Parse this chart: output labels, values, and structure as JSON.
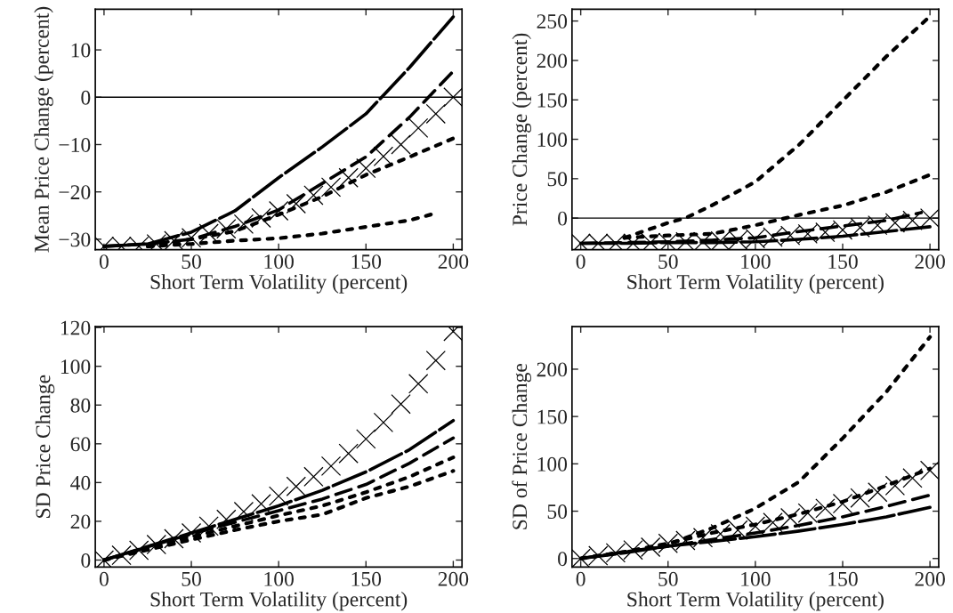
{
  "chart_data": [
    {
      "type": "line",
      "xlabel": "Short Term Volatility (percent)",
      "ylabel": "Mean Price Change (percent)",
      "xlim": [
        -5,
        205
      ],
      "ylim": [
        -32.2,
        18.6
      ],
      "xticks": [
        0,
        50,
        100,
        150,
        200
      ],
      "yticks": [
        -30,
        -20,
        -10,
        0,
        10
      ],
      "grid": false,
      "legend": false,
      "ref_lines": [
        {
          "axis": "y",
          "value": 0,
          "color": "#000000",
          "line_style": "solid"
        }
      ],
      "series": [
        {
          "line_style": "dashed",
          "color": "#000000",
          "x": [
            0,
            25,
            50,
            75,
            100,
            125,
            150,
            175,
            200
          ],
          "values": [
            -31.5,
            -31,
            -28.5,
            -24,
            -17,
            -10.5,
            -3.5,
            6.3,
            17
          ]
        },
        {
          "line_style": "dashed",
          "color": "#000000",
          "x": [
            0,
            25,
            50,
            75,
            100,
            125,
            150,
            175,
            200
          ],
          "values": [
            -31.5,
            -31,
            -30,
            -27.3,
            -23.8,
            -18.2,
            -12.6,
            -4.2,
            5.5
          ]
        },
        {
          "line_style": "dotted",
          "color": "#000000",
          "x": [
            25,
            50,
            75,
            100,
            125,
            150,
            175,
            200
          ],
          "values": [
            -31.5,
            -30,
            -28.3,
            -24.8,
            -21,
            -16.4,
            -12.6,
            -8.7
          ]
        },
        {
          "line_style": "dotted",
          "color": "#000000",
          "x": [
            25,
            50,
            75,
            100,
            125,
            150,
            175,
            190
          ],
          "values": [
            -31.5,
            -31,
            -30.3,
            -29.8,
            -28.8,
            -27.4,
            -26,
            -24.5
          ]
        },
        {
          "type": "scatter",
          "marker": "cross",
          "color": "#000000",
          "x": [
            0,
            10,
            20,
            30,
            40,
            50,
            60,
            70,
            80,
            90,
            100,
            110,
            120,
            130,
            140,
            150,
            160,
            170,
            180,
            190,
            200
          ],
          "values": [
            -31.5,
            -31.5,
            -31.5,
            -31,
            -30.3,
            -29.7,
            -28.8,
            -27.8,
            -26.8,
            -25.5,
            -24,
            -22.5,
            -20.7,
            -19,
            -17,
            -15,
            -12.5,
            -10,
            -6.5,
            -3.5,
            0
          ]
        }
      ]
    },
    {
      "type": "line",
      "xlabel": "Short Term Volatility (percent)",
      "ylabel": "Price Change (percent)",
      "xlim": [
        -5,
        205
      ],
      "ylim": [
        -40,
        265
      ],
      "xticks": [
        0,
        50,
        100,
        150,
        200
      ],
      "yticks": [
        0,
        50,
        100,
        150,
        200,
        250
      ],
      "grid": false,
      "legend": false,
      "ref_lines": [
        {
          "axis": "y",
          "value": 0,
          "color": "#000000",
          "line_style": "solid"
        }
      ],
      "series": [
        {
          "line_style": "dashed",
          "color": "#000000",
          "x": [
            0,
            25,
            50,
            75,
            100,
            125,
            150,
            175,
            200
          ],
          "values": [
            -32,
            -32,
            -31,
            -31,
            -30,
            -27,
            -23,
            -17,
            -11
          ]
        },
        {
          "line_style": "dashed",
          "color": "#000000",
          "x": [
            0,
            25,
            50,
            75,
            100,
            125,
            150,
            175,
            195
          ],
          "values": [
            -32,
            -31,
            -30,
            -28,
            -25,
            -17,
            -10,
            -3,
            7
          ]
        },
        {
          "line_style": "dotted",
          "color": "#000000",
          "x": [
            25,
            50,
            75,
            100,
            125,
            150,
            175,
            200
          ],
          "values": [
            -25,
            -22,
            -20,
            -9,
            4,
            16,
            33,
            55
          ]
        },
        {
          "line_style": "dotted",
          "color": "#000000",
          "x": [
            25,
            50,
            60,
            75,
            100,
            125,
            150,
            175,
            200
          ],
          "values": [
            -25,
            -6,
            0,
            16,
            46,
            93,
            149,
            205,
            256
          ]
        },
        {
          "type": "scatter",
          "marker": "cross",
          "color": "#000000",
          "x": [
            0,
            10,
            20,
            30,
            40,
            50,
            60,
            70,
            80,
            90,
            100,
            110,
            120,
            130,
            140,
            150,
            160,
            170,
            180,
            190,
            200
          ],
          "values": [
            -32,
            -32,
            -32,
            -32,
            -31,
            -31,
            -30,
            -30,
            -29,
            -28,
            -26,
            -24,
            -22,
            -20,
            -18,
            -15,
            -12,
            -9,
            -6,
            -3,
            0
          ]
        }
      ]
    },
    {
      "type": "line",
      "xlabel": "Short Term Volatility (percent)",
      "ylabel": "SD Price Change",
      "xlim": [
        -5,
        205
      ],
      "ylim": [
        -3.6,
        120.5
      ],
      "xticks": [
        0,
        50,
        100,
        150,
        200
      ],
      "yticks": [
        0,
        20,
        40,
        60,
        80,
        100,
        120
      ],
      "grid": false,
      "legend": false,
      "series": [
        {
          "line_style": "dashed",
          "color": "#000000",
          "x": [
            0,
            25,
            50,
            75,
            100,
            125,
            150,
            175,
            200
          ],
          "values": [
            0,
            7,
            14,
            21,
            28,
            36,
            45.5,
            57,
            72
          ]
        },
        {
          "line_style": "dashed",
          "color": "#000000",
          "x": [
            0,
            25,
            50,
            75,
            100,
            125,
            150,
            175,
            200
          ],
          "values": [
            0,
            6.8,
            13.5,
            19.5,
            25.5,
            31.5,
            39,
            50,
            63
          ]
        },
        {
          "line_style": "dotted",
          "color": "#000000",
          "x": [
            0,
            25,
            50,
            75,
            100,
            125,
            150,
            175,
            200
          ],
          "values": [
            0,
            6,
            12,
            17.5,
            23,
            28,
            35,
            43,
            53
          ]
        },
        {
          "line_style": "dotted",
          "color": "#000000",
          "x": [
            0,
            25,
            50,
            75,
            100,
            125,
            150,
            175,
            200
          ],
          "values": [
            0,
            5.3,
            10.5,
            15.5,
            20,
            23.5,
            32,
            38,
            46
          ]
        },
        {
          "type": "scatter",
          "marker": "cross",
          "color": "#000000",
          "x": [
            0,
            10,
            20,
            30,
            40,
            50,
            60,
            70,
            80,
            90,
            100,
            110,
            120,
            130,
            140,
            150,
            160,
            170,
            180,
            190,
            200
          ],
          "values": [
            0,
            2.5,
            5,
            8,
            11,
            14,
            17.5,
            21,
            25,
            29,
            33,
            38,
            43,
            48.5,
            55,
            62.5,
            71,
            80.5,
            91,
            103,
            118
          ]
        }
      ]
    },
    {
      "type": "line",
      "xlabel": "Short Term Volatility (percent)",
      "ylabel": "SD of Price Change",
      "xlim": [
        -5,
        205
      ],
      "ylim": [
        -9,
        245
      ],
      "xticks": [
        0,
        50,
        100,
        150,
        200
      ],
      "yticks": [
        0,
        50,
        100,
        150,
        200
      ],
      "grid": false,
      "legend": false,
      "series": [
        {
          "line_style": "dashed",
          "color": "#000000",
          "x": [
            0,
            25,
            50,
            75,
            100,
            125,
            150,
            175,
            200
          ],
          "values": [
            0,
            6,
            13,
            18,
            23,
            29,
            36,
            44,
            54
          ]
        },
        {
          "line_style": "dashed",
          "color": "#000000",
          "x": [
            0,
            25,
            50,
            75,
            100,
            125,
            150,
            175,
            200
          ],
          "values": [
            0,
            7,
            13,
            20,
            27,
            35,
            44,
            55,
            67
          ]
        },
        {
          "line_style": "dotted",
          "color": "#000000",
          "x": [
            0,
            25,
            50,
            75,
            100,
            125,
            150,
            175,
            200
          ],
          "values": [
            0,
            7,
            16,
            27,
            36,
            47,
            60,
            77,
            95
          ]
        },
        {
          "line_style": "dotted",
          "color": "#000000",
          "x": [
            0,
            25,
            50,
            75,
            100,
            125,
            150,
            175,
            200
          ],
          "values": [
            0,
            7,
            15,
            32,
            53,
            81,
            127,
            176,
            234
          ]
        },
        {
          "type": "scatter",
          "marker": "cross",
          "color": "#000000",
          "x": [
            0,
            10,
            20,
            30,
            40,
            50,
            60,
            70,
            80,
            90,
            100,
            110,
            120,
            130,
            140,
            150,
            160,
            170,
            180,
            190,
            200
          ],
          "values": [
            0,
            3,
            6,
            9,
            12,
            16,
            19,
            22,
            26,
            30,
            34,
            38,
            43,
            48,
            53,
            58,
            64,
            70,
            77,
            85,
            93
          ]
        }
      ]
    }
  ]
}
